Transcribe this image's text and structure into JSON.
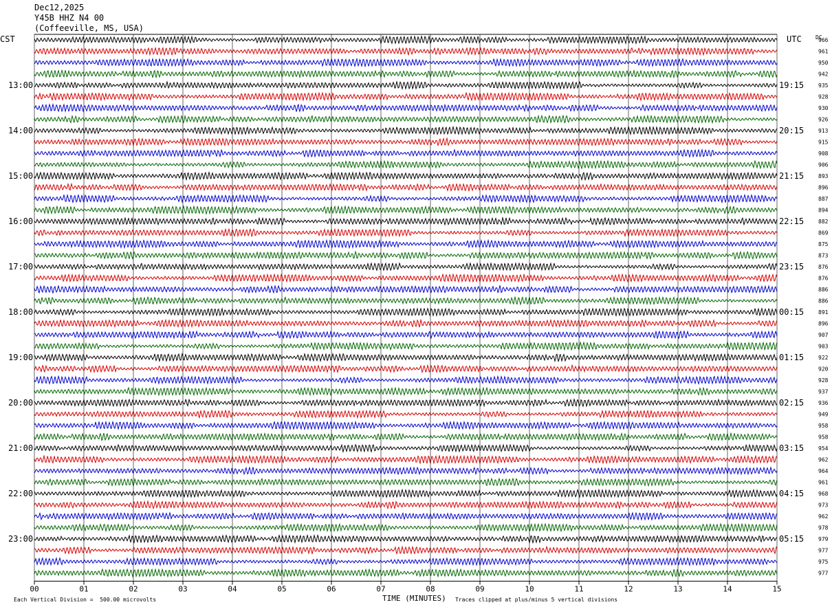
{
  "header": {
    "date": "Dec12,2025",
    "station": "Y45B HHZ N4 00",
    "location": "(Coffeeville, MS, USA)"
  },
  "left_zone": "CST",
  "right_zone": "UTC",
  "dc_label": "DC",
  "footer": {
    "scale_note": "Each Vertical Division =  500.00 microvolts",
    "x_title": "TIME (MINUTES)",
    "clip_note": "Traces clipped at plus/minus 5 vertical divisions"
  },
  "colors": {
    "trace_cycle": [
      "#000000",
      "#d40000",
      "#0000cc",
      "#006600"
    ],
    "grid": "#000000",
    "background": "#ffffff"
  },
  "chart_data": {
    "type": "line",
    "title": "",
    "xlabel": "TIME (MINUTES)",
    "ylabel": "",
    "xlim": [
      0,
      15
    ],
    "x_tick_labels": [
      "00",
      "01",
      "02",
      "03",
      "04",
      "05",
      "06",
      "07",
      "08",
      "09",
      "10",
      "11",
      "12",
      "13",
      "14",
      "15"
    ],
    "trace_minutes": 15,
    "trace_count": 48,
    "left_hour_labels": [
      "13:00",
      "14:00",
      "15:00",
      "16:00",
      "17:00",
      "18:00",
      "19:00",
      "20:00",
      "21:00",
      "22:00",
      "23:00"
    ],
    "right_hour_labels": [
      "19:15",
      "20:15",
      "21:15",
      "22:15",
      "23:15",
      "00:15",
      "01:15",
      "02:15",
      "03:15",
      "04:15",
      "05:15"
    ],
    "dc_offsets": [
      966,
      961,
      950,
      942,
      935,
      928,
      930,
      926,
      913,
      915,
      908,
      906,
      893,
      896,
      887,
      894,
      882,
      869,
      875,
      873,
      876,
      876,
      886,
      886,
      891,
      896,
      907,
      903,
      922,
      920,
      928,
      937,
      936,
      949,
      958,
      958,
      954,
      962,
      964,
      961,
      968,
      973,
      962,
      978,
      979,
      977,
      975,
      977
    ],
    "scale_microvolts_per_division": 500.0,
    "clip_divisions": 5
  }
}
